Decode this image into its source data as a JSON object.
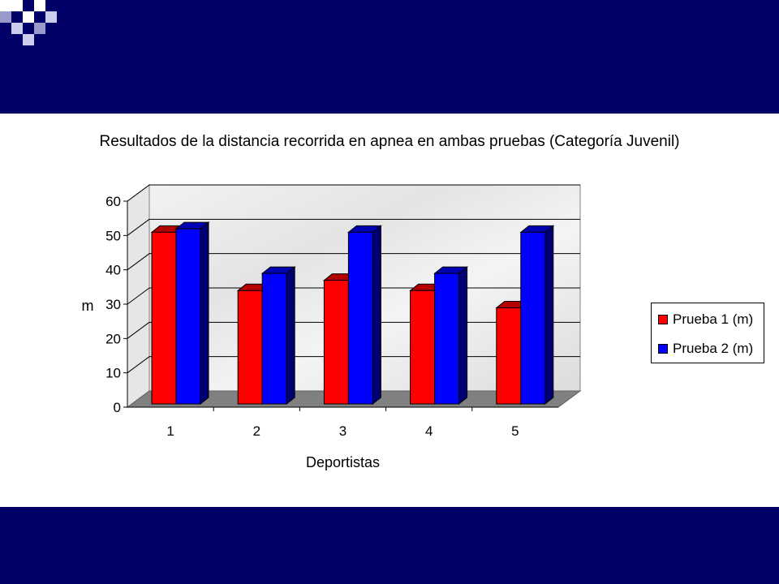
{
  "slide": {
    "header_color": "#000066",
    "footer_color": "#000066"
  },
  "chart_data": {
    "type": "bar",
    "title": "Resultados de la distancia recorrida en apnea en ambas pruebas (Categoría Juvenil)",
    "xlabel": "Deportistas",
    "ylabel": "m",
    "categories": [
      "1",
      "2",
      "3",
      "4",
      "5"
    ],
    "series": [
      {
        "name": "Prueba 1 (m)",
        "color": "#ff0000",
        "values": [
          50,
          33,
          36,
          33,
          28
        ]
      },
      {
        "name": "Prueba 2 (m)",
        "color": "#0000ff",
        "values": [
          51,
          38,
          50,
          38,
          50
        ]
      }
    ],
    "ylim": [
      0,
      60
    ],
    "yticks": [
      "0",
      "10",
      "20",
      "30",
      "40",
      "50",
      "60"
    ],
    "grid": true,
    "three_d": true,
    "legend_position": "right"
  }
}
